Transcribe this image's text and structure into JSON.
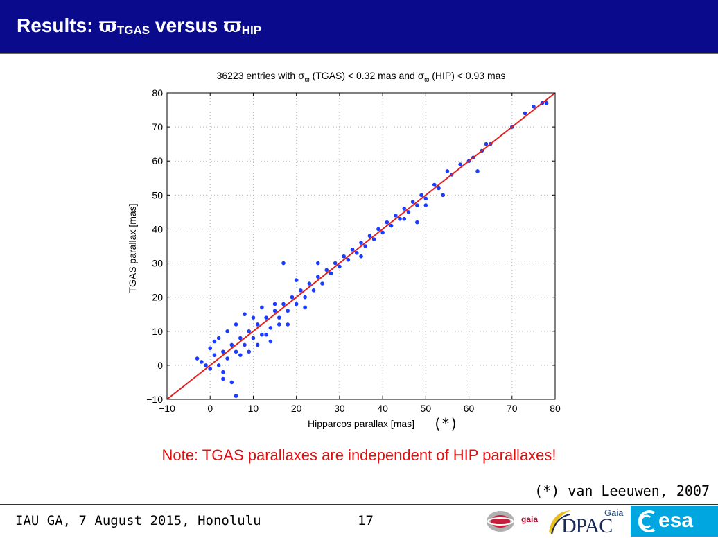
{
  "header": {
    "title_prefix": "Results: ",
    "pi_symbol": "ϖ",
    "sub_tgas": "TGAS",
    "versus": " versus ",
    "sub_hip": "HIP"
  },
  "chart_data": {
    "type": "scatter",
    "title": "36223 entries with σϖ (TGAS) < 0.32 mas and σϖ (HIP) < 0.93 mas",
    "title_parts": {
      "a": "36223 entries with ",
      "sigma": "σ",
      "pi": "ϖ",
      "b": " (TGAS) < 0.32 mas and ",
      "c": " (HIP) < 0.93 mas"
    },
    "xlabel": "Hipparcos parallax [mas]",
    "ylabel": "TGAS parallax [mas]",
    "xlim": [
      -10,
      80
    ],
    "ylim": [
      -10,
      80
    ],
    "xticks": [
      -10,
      0,
      10,
      20,
      30,
      40,
      50,
      60,
      70,
      80
    ],
    "yticks": [
      -10,
      0,
      10,
      20,
      30,
      40,
      50,
      60,
      70,
      80
    ],
    "grid": true,
    "annotation": "(*)",
    "series": [
      {
        "color": "#1a3cff",
        "points": [
          [
            -2,
            1
          ],
          [
            -3,
            2
          ],
          [
            -1,
            0
          ],
          [
            0,
            -1
          ],
          [
            1,
            3
          ],
          [
            2,
            0
          ],
          [
            3,
            4
          ],
          [
            4,
            2
          ],
          [
            5,
            6
          ],
          [
            6,
            4
          ],
          [
            7,
            8
          ],
          [
            8,
            6
          ],
          [
            9,
            10
          ],
          [
            10,
            8
          ],
          [
            11,
            12
          ],
          [
            12,
            9
          ],
          [
            13,
            14
          ],
          [
            14,
            11
          ],
          [
            15,
            16
          ],
          [
            16,
            14
          ],
          [
            17,
            18
          ],
          [
            18,
            16
          ],
          [
            19,
            20
          ],
          [
            20,
            18
          ],
          [
            21,
            22
          ],
          [
            22,
            20
          ],
          [
            23,
            24
          ],
          [
            24,
            22
          ],
          [
            25,
            26
          ],
          [
            26,
            24
          ],
          [
            27,
            28
          ],
          [
            28,
            27
          ],
          [
            29,
            30
          ],
          [
            30,
            29
          ],
          [
            31,
            32
          ],
          [
            32,
            31
          ],
          [
            33,
            34
          ],
          [
            34,
            33
          ],
          [
            35,
            36
          ],
          [
            36,
            35
          ],
          [
            37,
            38
          ],
          [
            38,
            37
          ],
          [
            39,
            40
          ],
          [
            40,
            39
          ],
          [
            41,
            42
          ],
          [
            42,
            41
          ],
          [
            43,
            44
          ],
          [
            44,
            43
          ],
          [
            45,
            46
          ],
          [
            46,
            45
          ],
          [
            47,
            48
          ],
          [
            48,
            47
          ],
          [
            49,
            50
          ],
          [
            50,
            49
          ],
          [
            52,
            53
          ],
          [
            53,
            52
          ],
          [
            55,
            57
          ],
          [
            56,
            56
          ],
          [
            58,
            59
          ],
          [
            60,
            60
          ],
          [
            61,
            61
          ],
          [
            63,
            63
          ],
          [
            64,
            65
          ],
          [
            65,
            65
          ],
          [
            70,
            70
          ],
          [
            73,
            74
          ],
          [
            75,
            76
          ],
          [
            77,
            77
          ],
          [
            78,
            77
          ],
          [
            6,
            -9
          ],
          [
            5,
            -5
          ],
          [
            3,
            -4
          ],
          [
            17,
            30
          ],
          [
            20,
            25
          ],
          [
            15,
            18
          ],
          [
            25,
            30
          ],
          [
            35,
            32
          ],
          [
            45,
            43
          ],
          [
            48,
            42
          ],
          [
            50,
            47
          ],
          [
            54,
            50
          ],
          [
            62,
            57
          ],
          [
            8,
            15
          ],
          [
            12,
            17
          ],
          [
            10,
            14
          ],
          [
            4,
            10
          ],
          [
            6,
            12
          ],
          [
            2,
            8
          ],
          [
            14,
            7
          ],
          [
            18,
            12
          ],
          [
            22,
            17
          ],
          [
            0,
            5
          ],
          [
            1,
            7
          ],
          [
            3,
            -2
          ],
          [
            7,
            3
          ],
          [
            9,
            4
          ],
          [
            11,
            6
          ],
          [
            13,
            9
          ],
          [
            16,
            12
          ]
        ]
      },
      {
        "name": "",
        "color": "#e02020",
        "line": [
          [
            -10,
            -10
          ],
          [
            80,
            80
          ]
        ]
      }
    ]
  },
  "note": "Note:  TGAS parallaxes are independent of HIP parallaxes!",
  "reference": "(*) van Leeuwen, 2007",
  "footer": {
    "event": "IAU GA, 7 August 2015, Honolulu",
    "page": "17"
  },
  "logos": {
    "gaia": "gaia",
    "dpac_small": "Gaia",
    "dpac": "DPAC",
    "esa": "esa"
  }
}
